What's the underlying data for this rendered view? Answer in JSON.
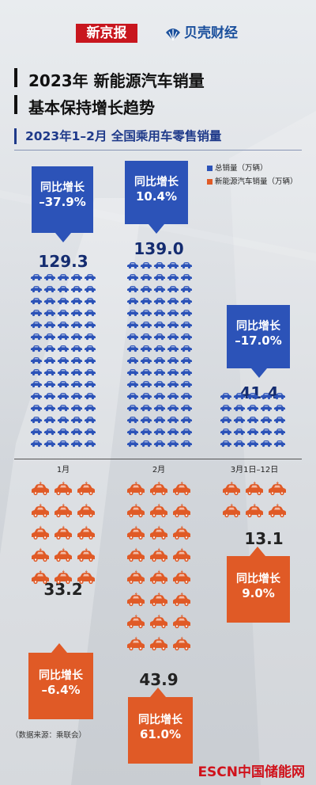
{
  "header": {
    "brand_left": "新京报",
    "brand_right": "贝壳财经"
  },
  "title": {
    "line1": "2023年 新能源汽车销量",
    "line2": "基本保持增长趋势"
  },
  "subtitle": "2023年1–2月 全国乘用车零售销量",
  "legend": {
    "total_label": "总销量（万辆）",
    "nev_label": "新能源汽车销量（万辆）",
    "total_color": "#2c53b8",
    "nev_color": "#e05a26"
  },
  "callout_label": "同比增长",
  "chart_data": {
    "type": "bar",
    "categories": [
      "1月",
      "2月",
      "3月1日–12日"
    ],
    "series": [
      {
        "name": "总销量（万辆）",
        "values": [
          129.3,
          139.0,
          41.4
        ],
        "yoy": [
          "–37.9%",
          "10.4%",
          "–17.0%"
        ]
      },
      {
        "name": "新能源汽车销量（万辆）",
        "values": [
          33.2,
          43.9,
          13.1
        ],
        "yoy": [
          "–6.4%",
          "61.0%",
          "9.0%"
        ]
      }
    ],
    "value_labels": {
      "total": [
        "129.3",
        "139.0",
        "41.4"
      ],
      "nev": [
        "33.2",
        "43.9",
        "13.1"
      ]
    },
    "total_icon_rows": [
      15,
      16,
      5
    ],
    "nev_icon_rows": [
      5,
      8,
      2
    ]
  },
  "source": "（数据来源：乘联会）",
  "footer": "ESCN中国储能网"
}
